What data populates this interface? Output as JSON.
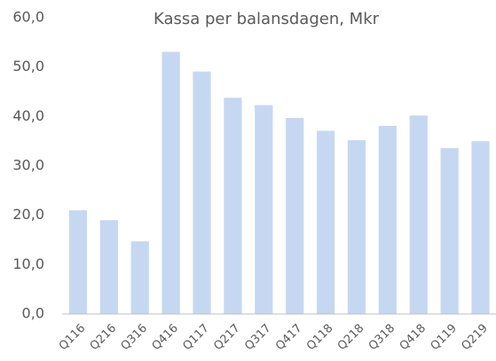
{
  "chart_data": {
    "type": "bar",
    "title": "Kassa per balansdagen, Mkr",
    "categories": [
      "Q116",
      "Q216",
      "Q316",
      "Q416",
      "Q117",
      "Q217",
      "Q317",
      "Q417",
      "Q118",
      "Q218",
      "Q318",
      "Q418",
      "Q119",
      "Q219"
    ],
    "values": [
      21.0,
      19.0,
      14.7,
      53.1,
      49.1,
      43.8,
      42.3,
      39.7,
      37.1,
      35.2,
      38.1,
      40.2,
      33.6,
      35.0
    ],
    "color": "#c6d8f1",
    "ylim": [
      0,
      60
    ],
    "yticks": [
      {
        "value": 0,
        "label": "0,0"
      },
      {
        "value": 10,
        "label": "10,0"
      },
      {
        "value": 20,
        "label": "20,0"
      },
      {
        "value": 30,
        "label": "30,0"
      },
      {
        "value": 40,
        "label": "40,0"
      },
      {
        "value": 50,
        "label": "50,0"
      },
      {
        "value": 60,
        "label": "60,0"
      }
    ],
    "grid": false
  }
}
